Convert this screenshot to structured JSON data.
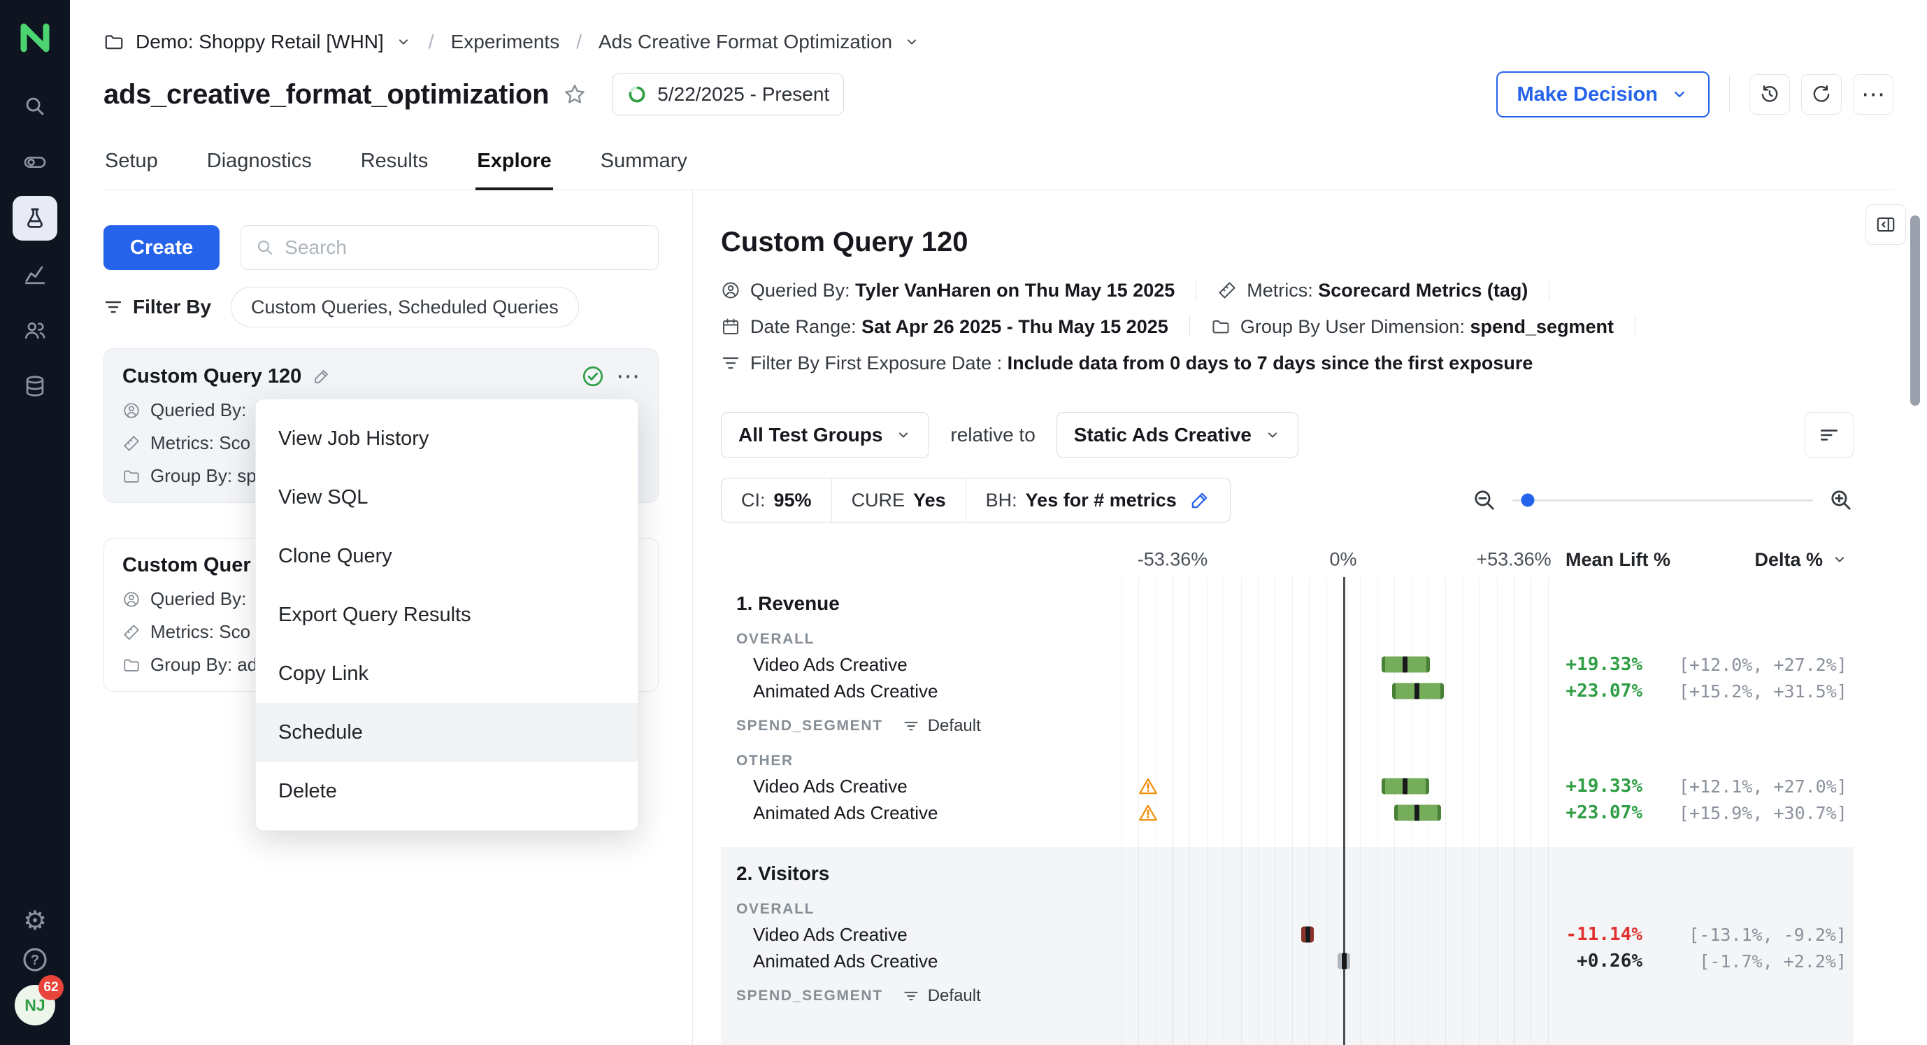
{
  "icons": {
    "more_horizontal": "⋯",
    "gear": "⚙",
    "help": "?"
  },
  "colors": {
    "accent": "#2563eb",
    "sidebar_bg": "#0e1420",
    "logo_green": "#4cd471",
    "positive_text": "#2f9e44",
    "negative_text": "#e03131",
    "neutral_text": "#212529",
    "warning": "#f08c00",
    "bar_green": {
      "fill": "#76ad5b",
      "edge": "#498038"
    },
    "bar_red": {
      "fill": "#b2493c",
      "edge": "#8a3329"
    },
    "bar_neutral": {
      "fill": "#ced4da",
      "edge": "#aeb6bd"
    },
    "text_green": "#2f9e44",
    "text_red": "#e03131",
    "text_neutral": "#212529"
  },
  "sidebar": {
    "items": [
      "search",
      "toggle",
      "experiments",
      "metrics",
      "users",
      "data"
    ],
    "active_item": "experiments",
    "avatar": {
      "initials": "NJ",
      "badge": "62"
    }
  },
  "breadcrumb": {
    "workspace": "Demo: Shoppy Retail [WHN]",
    "separator": "/",
    "section": "Experiments",
    "page": "Ads Creative Format Optimization"
  },
  "header": {
    "title": "ads_creative_format_optimization",
    "date_badge": "5/22/2025 - Present",
    "make_decision_label": "Make Decision"
  },
  "tabs": [
    {
      "label": "Setup",
      "active": false
    },
    {
      "label": "Diagnostics",
      "active": false
    },
    {
      "label": "Results",
      "active": false
    },
    {
      "label": "Explore",
      "active": true
    },
    {
      "label": "Summary",
      "active": false
    }
  ],
  "left_panel": {
    "create_label": "Create",
    "search_placeholder": "Search",
    "filter_by_label": "Filter By",
    "filter_chip": "Custom Queries, Scheduled Queries",
    "cards": [
      {
        "title": "Custom Query 120",
        "queried_by": "Queried By:",
        "metrics": "Metrics: Sco",
        "group_by": "Group By: sp"
      },
      {
        "title": "Custom Quer",
        "queried_by": "Queried By:",
        "metrics": "Metrics: Sco",
        "group_by": "Group By: ad"
      }
    ]
  },
  "context_menu": {
    "items": [
      "View Job History",
      "View SQL",
      "Clone Query",
      "Export Query Results",
      "Copy Link",
      "Schedule",
      "Delete"
    ],
    "highlighted": "Schedule"
  },
  "main": {
    "title": "Custom Query 120",
    "meta": {
      "queried_by_label": "Queried By: ",
      "queried_by_value": "Tyler VanHaren on Thu May 15 2025",
      "metrics_label": "Metrics: ",
      "metrics_value": "Scorecard Metrics (tag)",
      "date_range_label": "Date Range: ",
      "date_range_value": "Sat Apr 26 2025 - Thu May 15 2025",
      "group_by_label": "Group By User Dimension: ",
      "group_by_value": "spend_segment",
      "filter_label": "Filter By First Exposure Date : ",
      "filter_value": "Include data from 0 days to 7 days since the first exposure"
    },
    "controls": {
      "test_groups": "All Test Groups",
      "relative_to": "relative to",
      "baseline": "Static Ads Creative",
      "ci_label": "CI: ",
      "ci_value": "95%",
      "cure_label": "CURE ",
      "cure_value": "Yes",
      "bh_label": "BH: ",
      "bh_value": "Yes for # metrics"
    },
    "zoom": {
      "position_pct": 5
    }
  },
  "chart_data": {
    "type": "forest",
    "axis": {
      "min": -53.36,
      "max": 53.36,
      "tick_step": 5.336,
      "labels": [
        "-53.36%",
        "0%",
        "+53.36%"
      ],
      "label_values": [
        -53.36,
        0,
        53.36
      ]
    },
    "columns": [
      "Mean Lift %",
      "Delta %"
    ],
    "sections": [
      {
        "index": "1.",
        "metric": "Revenue",
        "background": "white",
        "groups": [
          {
            "label": "OVERALL",
            "rows": [
              {
                "name": "Video Ads Creative",
                "mean": 19.33,
                "ci": [
                  12.0,
                  27.2
                ],
                "mean_label": "+19.33%",
                "ci_label": "[+12.0%, +27.2%]",
                "color": "green",
                "warning": false
              },
              {
                "name": "Animated Ads Creative",
                "mean": 23.07,
                "ci": [
                  15.2,
                  31.5
                ],
                "mean_label": "+23.07%",
                "ci_label": "[+15.2%, +31.5%]",
                "color": "green",
                "warning": false
              }
            ]
          },
          {
            "label": "SPEND_SEGMENT",
            "chip": "Default",
            "rows": []
          },
          {
            "label": "OTHER",
            "rows": [
              {
                "name": "Video Ads Creative",
                "mean": 19.33,
                "ci": [
                  12.1,
                  27.0
                ],
                "mean_label": "+19.33%",
                "ci_label": "[+12.1%, +27.0%]",
                "color": "green",
                "warning": true
              },
              {
                "name": "Animated Ads Creative",
                "mean": 23.07,
                "ci": [
                  15.9,
                  30.7
                ],
                "mean_label": "+23.07%",
                "ci_label": "[+15.9%, +30.7%]",
                "color": "green",
                "warning": true
              }
            ]
          }
        ]
      },
      {
        "index": "2.",
        "metric": "Visitors",
        "background": "gray",
        "groups": [
          {
            "label": "OVERALL",
            "rows": [
              {
                "name": "Video Ads Creative",
                "mean": -11.14,
                "ci": [
                  -13.1,
                  -9.2
                ],
                "mean_label": "-11.14%",
                "ci_label": "[-13.1%, -9.2%]",
                "color": "red",
                "warning": false
              },
              {
                "name": "Animated Ads Creative",
                "mean": 0.26,
                "ci": [
                  -1.7,
                  2.2
                ],
                "mean_label": "+0.26%",
                "ci_label": "[-1.7%, +2.2%]",
                "color": "neutral",
                "warning": false
              }
            ]
          },
          {
            "label": "SPEND_SEGMENT",
            "chip": "Default",
            "rows": []
          }
        ]
      }
    ]
  }
}
